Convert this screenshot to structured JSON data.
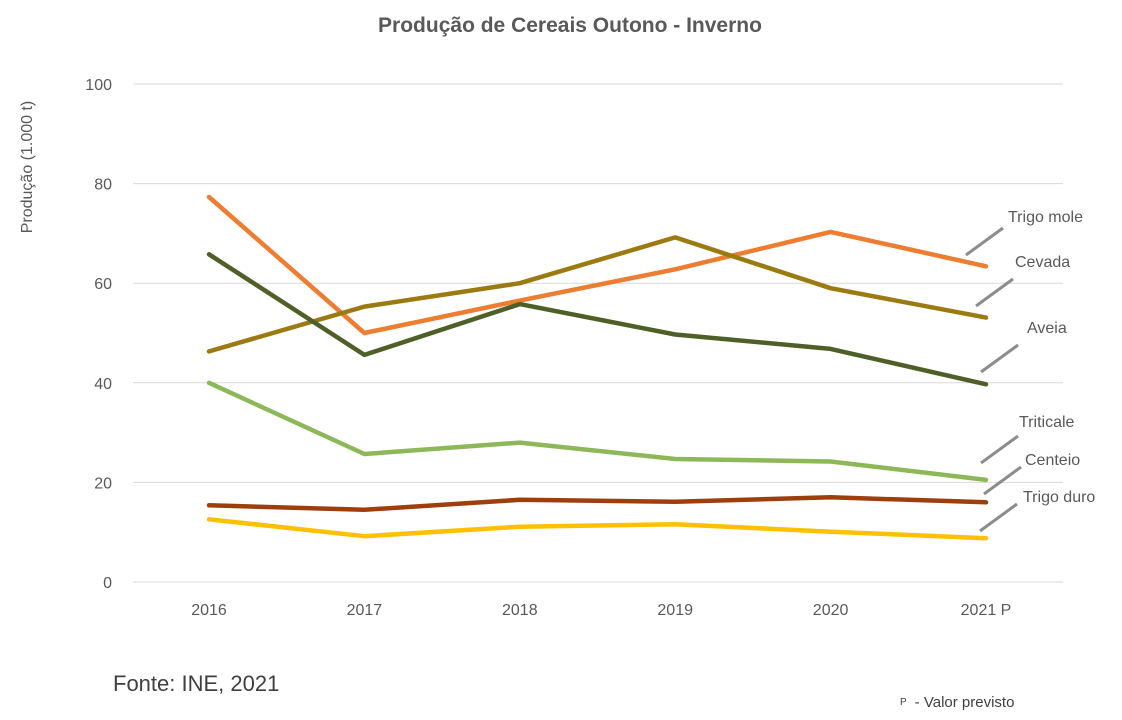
{
  "chart_data": {
    "type": "line",
    "title": "Produção de Cereais Outono - Inverno",
    "ylabel": "Produção (1.000 t)",
    "xlabel": "",
    "categories": [
      "2016",
      "2017",
      "2018",
      "2019",
      "2020",
      "2021 P"
    ],
    "ylim": [
      0,
      100
    ],
    "yticks": [
      "0",
      "20",
      "40",
      "60",
      "80",
      "100"
    ],
    "grid": true,
    "legend": "line-end labels at right",
    "series": [
      {
        "name": "Trigo mole",
        "color": "#ED7D31",
        "values": [
          77.3,
          50,
          56.5,
          62.8,
          70.3,
          63.4
        ]
      },
      {
        "name": "Cevada",
        "color": "#9C7A12",
        "values": [
          46.3,
          55.3,
          60,
          69.2,
          59,
          53.1
        ]
      },
      {
        "name": "Aveia",
        "color": "#4E6027",
        "values": [
          65.8,
          45.6,
          55.8,
          49.7,
          46.8,
          39.7
        ]
      },
      {
        "name": "Triticale",
        "color": "#8DB858",
        "values": [
          40,
          25.7,
          28,
          24.7,
          24.2,
          20.5
        ]
      },
      {
        "name": "Centeio",
        "color": "#9E3E0C",
        "values": [
          15.4,
          14.5,
          16.5,
          16.1,
          17,
          16
        ]
      },
      {
        "name": "Trigo duro",
        "color": "#FFC000",
        "values": [
          12.6,
          9.2,
          11.1,
          11.6,
          10.1,
          8.8
        ]
      }
    ],
    "annotations": {
      "source": "Fonte: INE, 2021",
      "footnote_mark": "P",
      "footnote_text": "- Valor previsto"
    },
    "colors": {
      "text": "#595959",
      "grid": "#D9D9D9",
      "leader": "#8C8C8C"
    }
  }
}
